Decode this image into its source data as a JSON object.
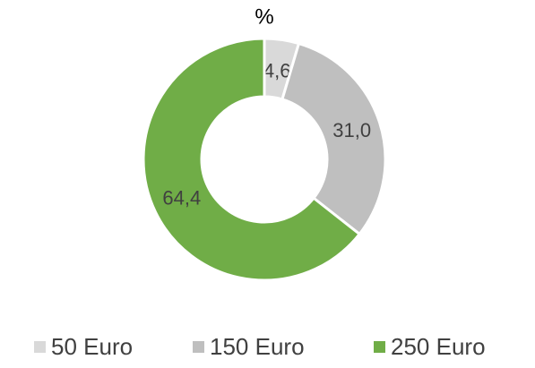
{
  "chart_data": {
    "type": "donut",
    "title": "%",
    "categories": [
      "50 Euro",
      "150 Euro",
      "250 Euro"
    ],
    "values": [
      4.6,
      31.0,
      64.4
    ],
    "value_labels": [
      "4,6",
      "31,0",
      "64,4"
    ],
    "colors": [
      "#d9d9d9",
      "#bfbfbf",
      "#70ad47"
    ],
    "legend": "bottom"
  }
}
